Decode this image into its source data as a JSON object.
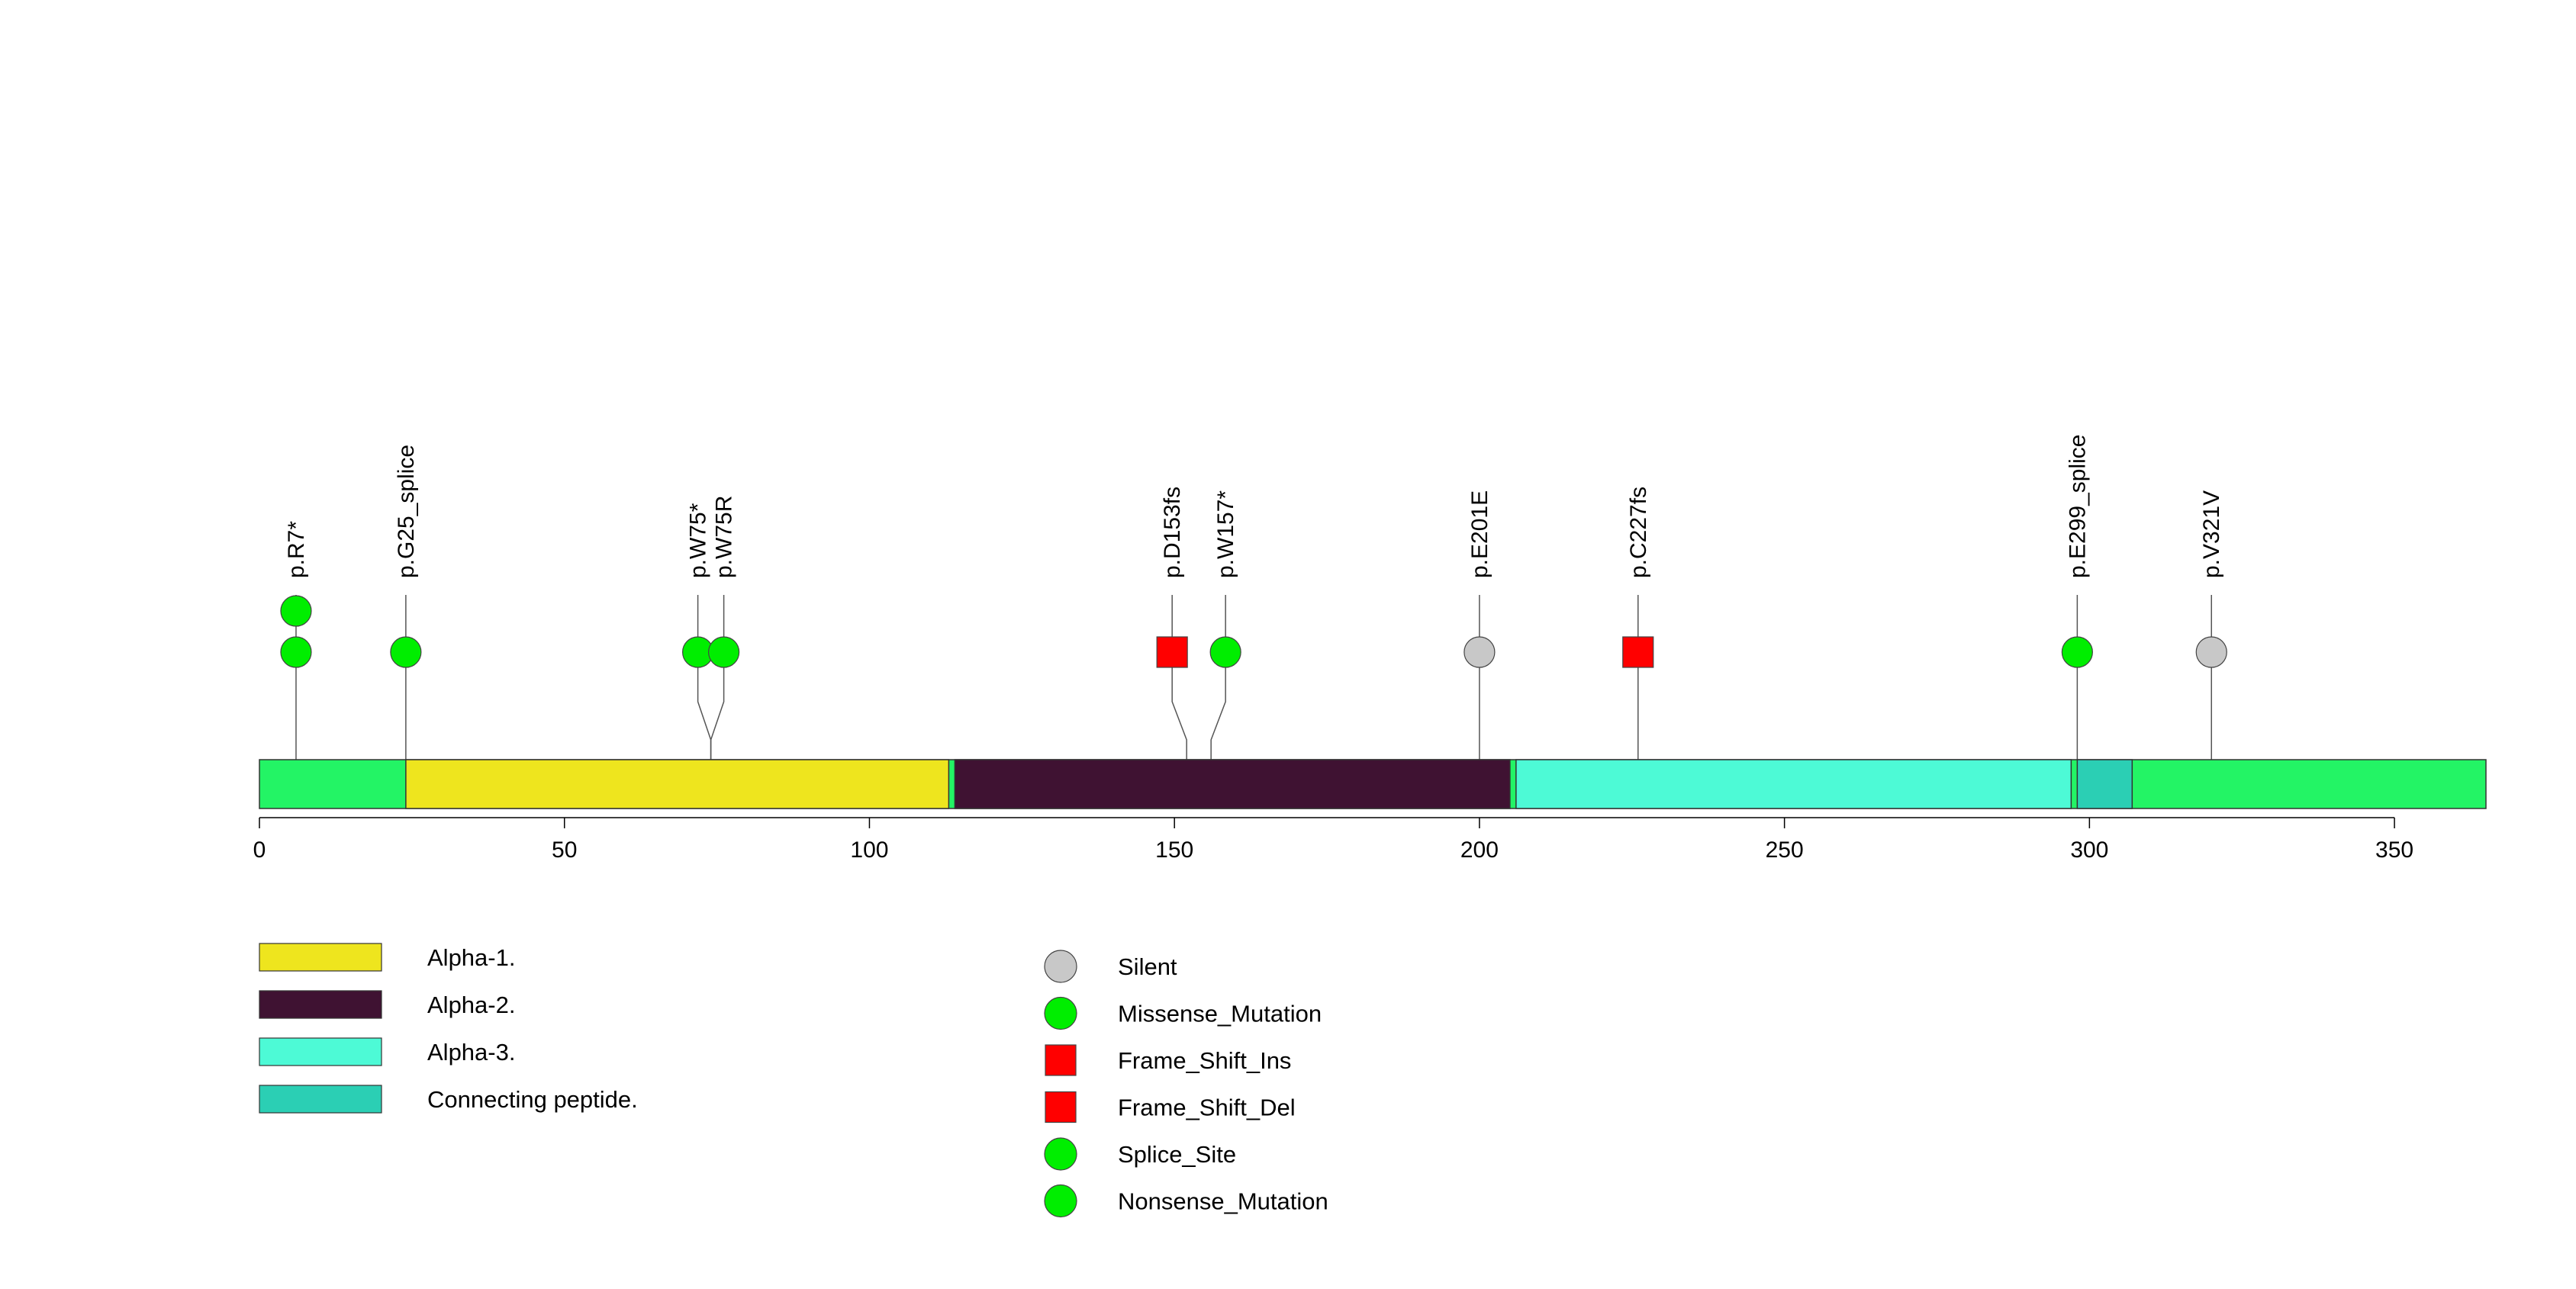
{
  "chart_data": {
    "type": "lollipop",
    "protein_length": 365,
    "x_ticks": [
      0,
      50,
      100,
      150,
      200,
      250,
      300,
      350
    ],
    "backbone_color": "#23F465",
    "domains": [
      {
        "name": "Alpha-1.",
        "start": 24,
        "end": 113,
        "color": "#EEE51E"
      },
      {
        "name": "Alpha-2.",
        "start": 114,
        "end": 205,
        "color": "#3F1232"
      },
      {
        "name": "Alpha-3.",
        "start": 206,
        "end": 297,
        "color": "#4DFAD6"
      },
      {
        "name": "Connecting peptide.",
        "start": 298,
        "end": 307,
        "color": "#2BCFB4"
      }
    ],
    "mutations": [
      {
        "label": "p.R7*",
        "position": 6,
        "count": 2,
        "type": "Nonsense_Mutation",
        "shape": "circle",
        "color": "#00EE00"
      },
      {
        "label": "p.G25_splice",
        "position": 24,
        "count": 1,
        "type": "Splice_Site",
        "shape": "circle",
        "color": "#00EE00"
      },
      {
        "label": "p.W75*",
        "position": 74,
        "count": 1,
        "type": "Nonsense_Mutation",
        "shape": "circle",
        "color": "#00EE00"
      },
      {
        "label": "p.W75R",
        "position": 74,
        "count": 1,
        "type": "Missense_Mutation",
        "shape": "circle",
        "color": "#00EE00"
      },
      {
        "label": "p.D153fs",
        "position": 152,
        "count": 1,
        "type": "Frame_Shift_Del",
        "shape": "square",
        "color": "#FF0000"
      },
      {
        "label": "p.W157*",
        "position": 156,
        "count": 1,
        "type": "Nonsense_Mutation",
        "shape": "circle",
        "color": "#00EE00"
      },
      {
        "label": "p.E201E",
        "position": 200,
        "count": 1,
        "type": "Silent",
        "shape": "circle",
        "color": "#C8C8C8"
      },
      {
        "label": "p.C227fs",
        "position": 226,
        "count": 1,
        "type": "Frame_Shift_Ins",
        "shape": "square",
        "color": "#FF0000"
      },
      {
        "label": "p.E299_splice",
        "position": 298,
        "count": 1,
        "type": "Splice_Site",
        "shape": "circle",
        "color": "#00EE00"
      },
      {
        "label": "p.V321V",
        "position": 320,
        "count": 1,
        "type": "Silent",
        "shape": "circle",
        "color": "#C8C8C8"
      }
    ],
    "legend_domains": [
      {
        "label": "Alpha-1.",
        "color": "#EEE51E"
      },
      {
        "label": "Alpha-2.",
        "color": "#3F1232"
      },
      {
        "label": "Alpha-3.",
        "color": "#4DFAD6"
      },
      {
        "label": "Connecting peptide.",
        "color": "#2BCFB4"
      }
    ],
    "legend_mutations": [
      {
        "label": "Silent",
        "shape": "circle",
        "color": "#C8C8C8"
      },
      {
        "label": "Missense_Mutation",
        "shape": "circle",
        "color": "#00EE00"
      },
      {
        "label": "Frame_Shift_Ins",
        "shape": "square",
        "color": "#FF0000"
      },
      {
        "label": "Frame_Shift_Del",
        "shape": "square",
        "color": "#FF0000"
      },
      {
        "label": "Splice_Site",
        "shape": "circle",
        "color": "#00EE00"
      },
      {
        "label": "Nonsense_Mutation",
        "shape": "circle",
        "color": "#00EE00"
      }
    ]
  }
}
